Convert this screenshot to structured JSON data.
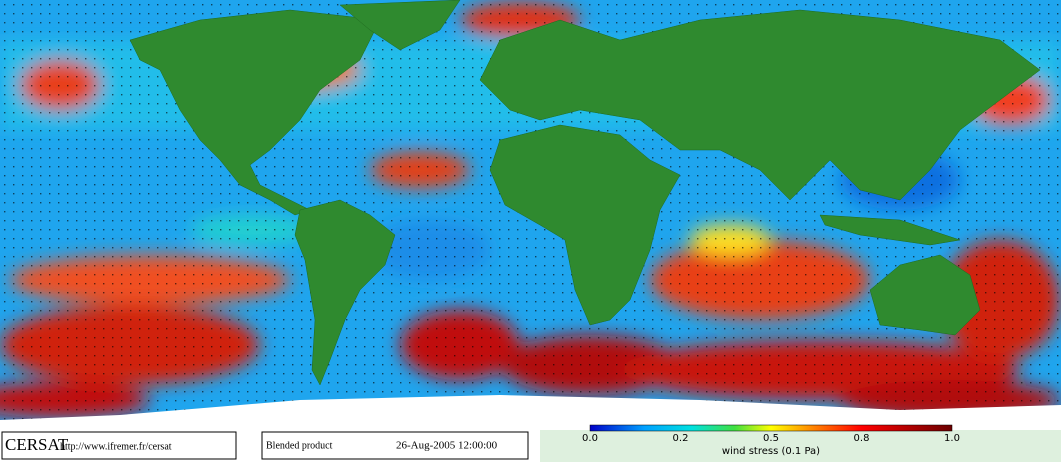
{
  "footer": {
    "logo": "CERSAT",
    "url": "http://www.ifremer.fr/cersat",
    "product": "Blended product",
    "date": "26-Aug-2005 12:00:00"
  },
  "colorbar": {
    "ticks": [
      "0.0",
      "0.2",
      "0.5",
      "0.8",
      "1.0"
    ],
    "label": "wind stress (0.1 Pa)"
  }
}
